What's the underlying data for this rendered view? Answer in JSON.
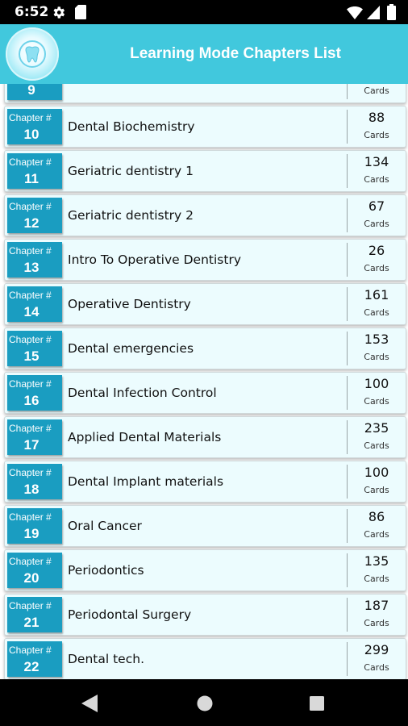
{
  "status_bar": {
    "time": "6:52",
    "icons": [
      "gear-icon",
      "sd-card-icon",
      "wifi-icon",
      "signal-icon",
      "battery-icon"
    ]
  },
  "header": {
    "title": "Learning Mode Chapters List",
    "background_color": "#41c8dd"
  },
  "chapters": [
    {
      "label": "Chapter #",
      "number": "9",
      "title": "",
      "count": "",
      "cards_label": "Cards"
    },
    {
      "label": "Chapter #",
      "number": "10",
      "title": "Dental Biochemistry",
      "count": "88",
      "cards_label": "Cards"
    },
    {
      "label": "Chapter #",
      "number": "11",
      "title": "Geriatric dentistry 1",
      "count": "134",
      "cards_label": "Cards"
    },
    {
      "label": "Chapter #",
      "number": "12",
      "title": "Geriatric dentistry 2",
      "count": "67",
      "cards_label": "Cards"
    },
    {
      "label": "Chapter #",
      "number": "13",
      "title": "Intro To Operative Dentistry",
      "count": "26",
      "cards_label": "Cards"
    },
    {
      "label": "Chapter #",
      "number": "14",
      "title": "Operative Dentistry",
      "count": "161",
      "cards_label": "Cards"
    },
    {
      "label": "Chapter #",
      "number": "15",
      "title": "Dental emergencies",
      "count": "153",
      "cards_label": "Cards"
    },
    {
      "label": "Chapter #",
      "number": "16",
      "title": "Dental Infection Control",
      "count": "100",
      "cards_label": "Cards"
    },
    {
      "label": "Chapter #",
      "number": "17",
      "title": "Applied Dental Materials",
      "count": "235",
      "cards_label": "Cards"
    },
    {
      "label": "Chapter #",
      "number": "18",
      "title": "Dental Implant materials",
      "count": "100",
      "cards_label": "Cards"
    },
    {
      "label": "Chapter #",
      "number": "19",
      "title": "Oral Cancer",
      "count": "86",
      "cards_label": "Cards"
    },
    {
      "label": "Chapter #",
      "number": "20",
      "title": "Periodontics",
      "count": "135",
      "cards_label": "Cards"
    },
    {
      "label": "Chapter #",
      "number": "21",
      "title": "Periodontal Surgery",
      "count": "187",
      "cards_label": "Cards"
    },
    {
      "label": "Chapter #",
      "number": "22",
      "title": "Dental tech.",
      "count": "299",
      "cards_label": "Cards"
    }
  ],
  "colors": {
    "badge": "#1a9dc1",
    "row_background": "#ecfcfe"
  },
  "nav_bar": {
    "icons": [
      "back-icon",
      "home-icon",
      "recents-icon"
    ]
  }
}
